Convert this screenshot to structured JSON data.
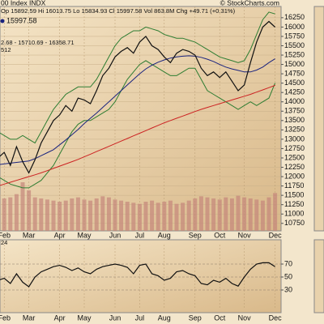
{
  "chart_data": [
    {
      "type": "line",
      "title": "00 Index INDX",
      "subtitle": "Op 15892.59 Hi 16013.75 Lo 15834.93 Cl 15997.58 Vol 863.8M Chg +49.71 (+0.31%)",
      "annotations": [
        "© StockCharts.com",
        "15997.58",
        "2.68 - 15710.69 - 16358.71",
        "512"
      ],
      "categories": [
        null,
        null,
        "Feb",
        null,
        null,
        null,
        "Mar",
        null,
        null,
        null,
        null,
        "Apr",
        null,
        null,
        null,
        "May",
        null,
        null,
        null,
        null,
        "Jun",
        null,
        null,
        null,
        "Jul",
        null,
        null,
        null,
        "Aug",
        null,
        null,
        null,
        null,
        "Sep",
        null,
        null,
        null,
        "Oct",
        null,
        null,
        null,
        "Nov",
        null,
        null,
        null,
        null,
        "Dec"
      ],
      "series": [
        {
          "color": "#111111",
          "values": [
            12900,
            12500,
            12650,
            12300,
            12800,
            12400,
            12100,
            12450,
            12900,
            13200,
            13500,
            13650,
            13900,
            13750,
            14100,
            14050,
            13950,
            14300,
            14700,
            14900,
            15200,
            15350,
            15450,
            15300,
            15600,
            15750,
            15500,
            15400,
            15200,
            15050,
            15300,
            15400,
            15350,
            15250,
            14900,
            14700,
            14800,
            14650,
            14800,
            14550,
            14300,
            14450,
            15050,
            15600,
            16000,
            16150,
            15997.58
          ]
        },
        {
          "color": "#1a237e",
          "values": [
            12300,
            12320,
            12340,
            12360,
            12380,
            12400,
            12420,
            12480,
            12560,
            12640,
            12720,
            12850,
            12980,
            13120,
            13260,
            13420,
            13560,
            13700,
            13850,
            14000,
            14150,
            14300,
            14450,
            14600,
            14750,
            14880,
            14980,
            15060,
            15120,
            15170,
            15200,
            15220,
            15230,
            15220,
            15190,
            15140,
            15080,
            15000,
            14930,
            14880,
            14840,
            14800,
            14800,
            14850,
            14930,
            15050,
            15150
          ]
        },
        {
          "color": "#cc2222",
          "values": [
            11700,
            11750,
            11800,
            11850,
            11900,
            11950,
            12000,
            12050,
            12100,
            12160,
            12220,
            12280,
            12340,
            12400,
            12460,
            12530,
            12600,
            12670,
            12740,
            12810,
            12880,
            12950,
            13020,
            13090,
            13160,
            13230,
            13300,
            13370,
            13440,
            13500,
            13560,
            13620,
            13680,
            13740,
            13800,
            13850,
            13900,
            13950,
            14000,
            14050,
            14100,
            14150,
            14200,
            14260,
            14320,
            14380,
            14440
          ]
        },
        {
          "color": "#2e7d32",
          "values": [
            13300,
            13200,
            13100,
            13000,
            13000,
            13100,
            13000,
            12900,
            13200,
            13500,
            13800,
            14000,
            14200,
            14300,
            14400,
            14400,
            14400,
            14600,
            14900,
            15200,
            15500,
            15700,
            15800,
            15900,
            15900,
            16000,
            15950,
            15900,
            15800,
            15750,
            15700,
            15700,
            15650,
            15600,
            15500,
            15400,
            15300,
            15200,
            15150,
            15100,
            15050,
            15100,
            15400,
            15800,
            16200,
            16400,
            16350
          ]
        },
        {
          "color": "#2e7d32",
          "values": [
            12200,
            12000,
            11900,
            11800,
            11750,
            11700,
            11700,
            11800,
            11900,
            12100,
            12300,
            12600,
            12900,
            13200,
            13400,
            13500,
            13500,
            13600,
            13700,
            13800,
            14000,
            14300,
            14600,
            14800,
            15000,
            15100,
            15000,
            14900,
            14800,
            14700,
            14700,
            14800,
            14900,
            14900,
            14600,
            14300,
            14200,
            14100,
            14000,
            13900,
            13800,
            13900,
            14000,
            13900,
            14000,
            14100,
            14500
          ]
        }
      ],
      "volume": [
        700,
        650,
        600,
        620,
        680,
        900,
        750,
        620,
        600,
        580,
        560,
        540,
        560,
        600,
        620,
        580,
        560,
        600,
        640,
        620,
        580,
        560,
        540,
        520,
        500,
        540,
        560,
        520,
        540,
        560,
        500,
        520,
        560,
        600,
        640,
        620,
        600,
        580,
        620,
        600,
        650,
        620,
        600,
        580,
        560,
        620,
        700
      ],
      "volume_color": "#c4867a",
      "ylim": [
        10550,
        16550
      ],
      "yticks": [
        10750,
        11000,
        11250,
        11500,
        11750,
        12000,
        12250,
        12500,
        12750,
        13000,
        13250,
        13500,
        13750,
        14000,
        14250,
        14500,
        14750,
        15000,
        15250,
        15500,
        15750,
        16000,
        16250
      ],
      "grid": true
    },
    {
      "type": "line",
      "title": "24",
      "categories": [
        null,
        null,
        "Feb",
        null,
        null,
        null,
        "Mar",
        null,
        null,
        null,
        null,
        "Apr",
        null,
        null,
        null,
        "May",
        null,
        null,
        null,
        null,
        "Jun",
        null,
        null,
        null,
        "Jul",
        null,
        null,
        null,
        "Aug",
        null,
        null,
        null,
        null,
        "Sep",
        null,
        null,
        null,
        "Oct",
        null,
        null,
        null,
        "Nov",
        null,
        null,
        null,
        null,
        "Dec"
      ],
      "series": [
        {
          "color": "#111111",
          "values": [
            50,
            45,
            48,
            40,
            55,
            42,
            35,
            50,
            58,
            62,
            66,
            68,
            65,
            60,
            64,
            58,
            55,
            62,
            66,
            68,
            70,
            68,
            65,
            55,
            68,
            70,
            55,
            52,
            45,
            48,
            58,
            60,
            55,
            52,
            40,
            38,
            45,
            42,
            48,
            40,
            36,
            50,
            62,
            70,
            72,
            72,
            66
          ]
        }
      ],
      "ylim": [
        0,
        100
      ],
      "yticks": [
        30,
        50,
        70
      ],
      "grid": true
    }
  ]
}
